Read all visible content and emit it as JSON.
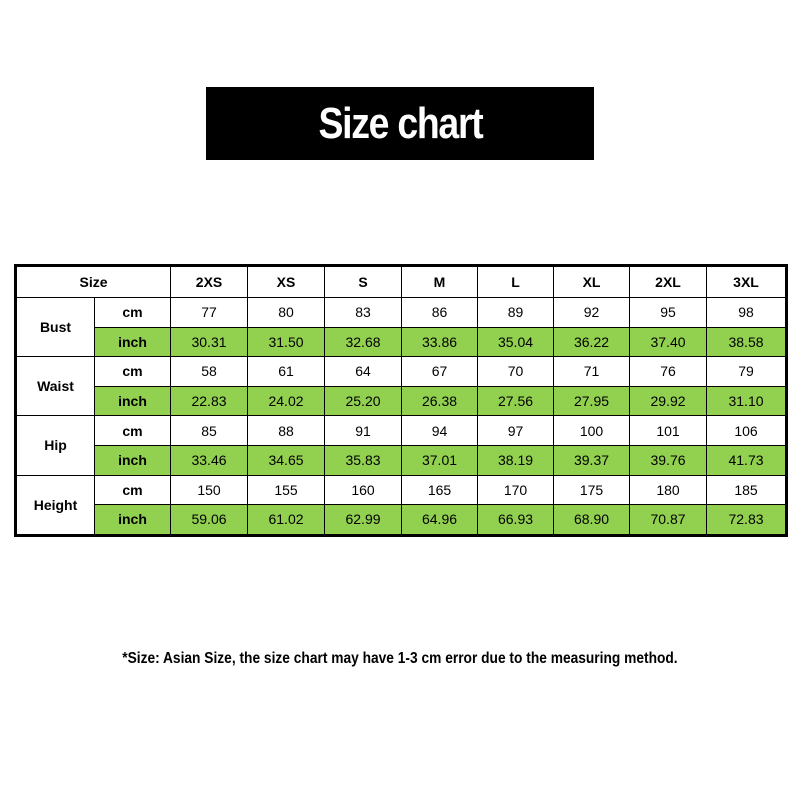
{
  "title": "Size chart",
  "table": {
    "size_label": "Size",
    "sizes": [
      "2XS",
      "XS",
      "S",
      "M",
      "L",
      "XL",
      "2XL",
      "3XL"
    ],
    "groups": [
      {
        "label": "Bust",
        "rows": [
          {
            "unit": "cm",
            "values": [
              "77",
              "80",
              "83",
              "86",
              "89",
              "92",
              "95",
              "98"
            ]
          },
          {
            "unit": "inch",
            "values": [
              "30.31",
              "31.50",
              "32.68",
              "33.86",
              "35.04",
              "36.22",
              "37.40",
              "38.58"
            ]
          }
        ]
      },
      {
        "label": "Waist",
        "rows": [
          {
            "unit": "cm",
            "values": [
              "58",
              "61",
              "64",
              "67",
              "70",
              "71",
              "76",
              "79"
            ]
          },
          {
            "unit": "inch",
            "values": [
              "22.83",
              "24.02",
              "25.20",
              "26.38",
              "27.56",
              "27.95",
              "29.92",
              "31.10"
            ]
          }
        ]
      },
      {
        "label": "Hip",
        "rows": [
          {
            "unit": "cm",
            "values": [
              "85",
              "88",
              "91",
              "94",
              "97",
              "100",
              "101",
              "106"
            ]
          },
          {
            "unit": "inch",
            "values": [
              "33.46",
              "34.65",
              "35.83",
              "37.01",
              "38.19",
              "39.37",
              "39.76",
              "41.73"
            ]
          }
        ]
      },
      {
        "label": "Height",
        "rows": [
          {
            "unit": "cm",
            "values": [
              "150",
              "155",
              "160",
              "165",
              "170",
              "175",
              "180",
              "185"
            ]
          },
          {
            "unit": "inch",
            "values": [
              "59.06",
              "61.02",
              "62.99",
              "64.96",
              "66.93",
              "68.90",
              "70.87",
              "72.83"
            ]
          }
        ]
      }
    ]
  },
  "note": "*Size: Asian Size, the size chart may have 1-3 cm error due to the measuring method."
}
